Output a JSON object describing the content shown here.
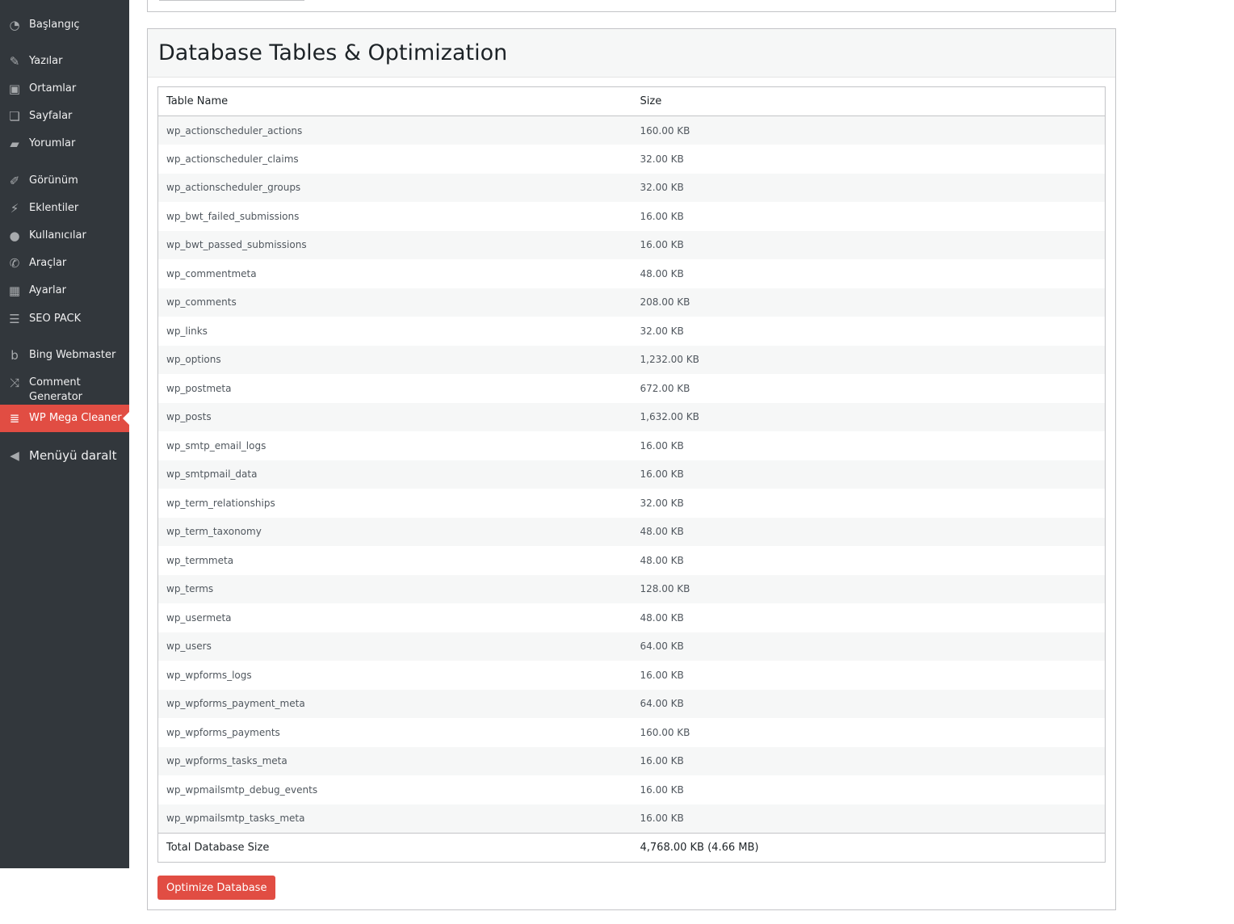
{
  "sidebar": {
    "items": [
      {
        "label": "Başlangıç",
        "icon": "dashboard-icon"
      },
      {
        "label": "Yazılar",
        "icon": "pin-icon"
      },
      {
        "label": "Ortamlar",
        "icon": "media-icon"
      },
      {
        "label": "Sayfalar",
        "icon": "pages-icon"
      },
      {
        "label": "Yorumlar",
        "icon": "comments-icon"
      },
      {
        "label": "Görünüm",
        "icon": "appearance-icon"
      },
      {
        "label": "Eklentiler",
        "icon": "plugins-icon"
      },
      {
        "label": "Kullanıcılar",
        "icon": "users-icon"
      },
      {
        "label": "Araçlar",
        "icon": "tools-icon"
      },
      {
        "label": "Ayarlar",
        "icon": "settings-icon"
      },
      {
        "label": "SEO PACK",
        "icon": "list-icon"
      },
      {
        "label": "Bing Webmaster",
        "icon": "bing-icon"
      },
      {
        "label": "Comment Generator",
        "icon": "shuffle-icon"
      },
      {
        "label": "WP Mega Cleaner",
        "icon": "database-icon",
        "active": true
      },
      {
        "label": "Menüyü daralt",
        "icon": "collapse-icon"
      }
    ]
  },
  "panel": {
    "title": "Database Tables & Optimization",
    "columns": [
      "Table Name",
      "Size"
    ],
    "rows": [
      [
        "wp_actionscheduler_actions",
        "160.00 KB"
      ],
      [
        "wp_actionscheduler_claims",
        "32.00 KB"
      ],
      [
        "wp_actionscheduler_groups",
        "32.00 KB"
      ],
      [
        "wp_bwt_failed_submissions",
        "16.00 KB"
      ],
      [
        "wp_bwt_passed_submissions",
        "16.00 KB"
      ],
      [
        "wp_commentmeta",
        "48.00 KB"
      ],
      [
        "wp_comments",
        "208.00 KB"
      ],
      [
        "wp_links",
        "32.00 KB"
      ],
      [
        "wp_options",
        "1,232.00 KB"
      ],
      [
        "wp_postmeta",
        "672.00 KB"
      ],
      [
        "wp_posts",
        "1,632.00 KB"
      ],
      [
        "wp_smtp_email_logs",
        "16.00 KB"
      ],
      [
        "wp_smtpmail_data",
        "16.00 KB"
      ],
      [
        "wp_term_relationships",
        "32.00 KB"
      ],
      [
        "wp_term_taxonomy",
        "48.00 KB"
      ],
      [
        "wp_termmeta",
        "48.00 KB"
      ],
      [
        "wp_terms",
        "128.00 KB"
      ],
      [
        "wp_usermeta",
        "48.00 KB"
      ],
      [
        "wp_users",
        "64.00 KB"
      ],
      [
        "wp_wpforms_logs",
        "16.00 KB"
      ],
      [
        "wp_wpforms_payment_meta",
        "64.00 KB"
      ],
      [
        "wp_wpforms_payments",
        "160.00 KB"
      ],
      [
        "wp_wpforms_tasks_meta",
        "16.00 KB"
      ],
      [
        "wp_wpmailsmtp_debug_events",
        "16.00 KB"
      ],
      [
        "wp_wpmailsmtp_tasks_meta",
        "16.00 KB"
      ]
    ],
    "total_label": "Total Database Size",
    "total_value": "4,768.00 KB (4.66 MB)",
    "optimize_label": "Optimize Database"
  },
  "colors": {
    "accent": "#e14d43",
    "sidebar": "#32373c"
  }
}
